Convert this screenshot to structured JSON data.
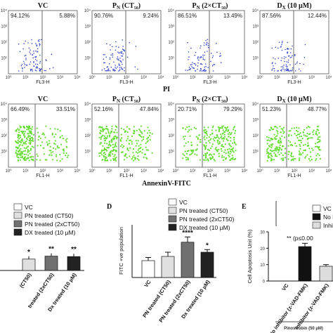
{
  "chart_data": [
    {
      "type": "scatter",
      "group": "PI",
      "xlabel": "FL3-H",
      "axis_ticks": [
        "10⁰",
        "10¹",
        "10²",
        "10³",
        "10⁴"
      ],
      "panels": [
        {
          "title": "VC",
          "q_left": "94.12%",
          "q_right": "5.88%",
          "pct_right": 5.88
        },
        {
          "title": "P_N (CT50)",
          "q_left": "90.76%",
          "q_right": "9.24%",
          "pct_right": 9.24
        },
        {
          "title": "P_N (2×CT50)",
          "q_left": "86.51%",
          "q_right": "13.49%",
          "pct_right": 13.49
        },
        {
          "title": "D_X (10 µM)",
          "q_left": "87.56%",
          "q_right": "12.44%",
          "pct_right": 12.44
        }
      ]
    },
    {
      "type": "scatter",
      "group": "AnnexinV-FITC",
      "xlabel": "FL1-H",
      "axis_ticks": [
        "10⁰",
        "10¹",
        "10²",
        "10³",
        "10⁴"
      ],
      "panels": [
        {
          "title": "VC",
          "q_left": "66.49%",
          "q_right": "33.51%",
          "pct_right": 33.51
        },
        {
          "title": "P_N (CT50)",
          "q_left": "52.16%",
          "q_right": "47.84%",
          "pct_right": 47.84
        },
        {
          "title": "P_N (2×CT50)",
          "q_left": "20.71%",
          "q_right": "79.29%",
          "pct_right": 79.29
        },
        {
          "title": "D_X (10 µM)",
          "q_left": "51.23%",
          "q_right": "48.77%",
          "pct_right": 48.77
        }
      ]
    },
    {
      "type": "bar",
      "label": "",
      "categories": [
        "(CT50)",
        "treated (2xCT50)",
        "Dx treated (10 µM)"
      ],
      "values": [
        27,
        34,
        33
      ],
      "colors": [
        "#e0e0e0",
        "#707070",
        "#222222"
      ],
      "sig": [
        "*",
        "**",
        "**"
      ],
      "legend": [
        "VC",
        "PN treated (CT50)",
        "PN treated (2xCT50)",
        "DX treated (10 µM)"
      ],
      "ylim": [
        0,
        100
      ]
    },
    {
      "type": "bar",
      "label": "D",
      "ylabel": "FITC +ve population",
      "categories": [
        "VC",
        "PN treated (CT50)",
        "PN treated (2xCT50)",
        "Dx treated (10 µM)"
      ],
      "values": [
        32,
        40,
        67,
        48
      ],
      "errors": [
        6,
        8,
        10,
        5
      ],
      "colors": [
        "#ffffff",
        "#e0e0e0",
        "#707070",
        "#222222"
      ],
      "sig": [
        "",
        "",
        "****",
        "*"
      ],
      "legend": [
        "VC",
        "PN treated (CT50)",
        "PN treated (2xCT50)",
        "DX treated (10 µM)"
      ],
      "ylim": [
        0,
        100
      ]
    },
    {
      "type": "bar",
      "label": "E",
      "ylabel": "Cell Apoptosis Unit (%)",
      "categories": [
        "VC",
        "No inhibitor (z-VAD-FMK)",
        "Inhibitor (z-VAD-FMK)"
      ],
      "values": [
        0,
        21,
        9
      ],
      "errors": [
        0,
        2,
        1
      ],
      "colors": [
        "#ffffff",
        "#111111",
        "#dddddd"
      ],
      "annotation": "** (p≤0.00",
      "legend": [
        "VC",
        "No i",
        "Inhib"
      ],
      "group_label": "Pinostrobin (50 µM)",
      "ylim": [
        0,
        30
      ],
      "yticks": [
        0,
        10,
        20,
        30
      ]
    }
  ],
  "labels": {
    "pi": "PI",
    "annexin": "AnnexinV-FITC",
    "panel_d": "D",
    "panel_e": "E",
    "d_ylabel": "FITC +ve population",
    "e_ylabel": "Cell Apoptosis Unit (%)",
    "e_annotation": "** (p≤0.00",
    "pinostrobin": "Pinostrobin (50 µM)",
    "fl3": "FL3-H",
    "fl1": "FL1-H"
  }
}
